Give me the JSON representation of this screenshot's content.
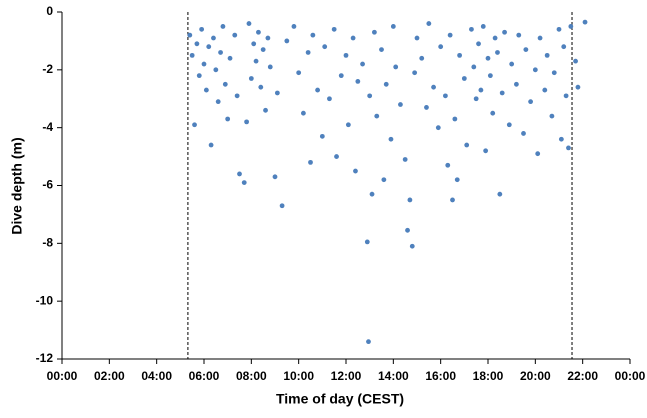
{
  "chart_data": {
    "type": "scatter",
    "xlabel": "Time of day (CEST)",
    "ylabel": "Dive depth (m)",
    "color": "#4f81bd",
    "xlim": [
      0,
      24
    ],
    "xticks": [
      {
        "value": 0,
        "label": "00:00"
      },
      {
        "value": 2,
        "label": "02:00"
      },
      {
        "value": 4,
        "label": "04:00"
      },
      {
        "value": 6,
        "label": "06:00"
      },
      {
        "value": 8,
        "label": "08:00"
      },
      {
        "value": 10,
        "label": "10:00"
      },
      {
        "value": 12,
        "label": "12:00"
      },
      {
        "value": 14,
        "label": "14:00"
      },
      {
        "value": 16,
        "label": "16:00"
      },
      {
        "value": 18,
        "label": "18:00"
      },
      {
        "value": 20,
        "label": "20:00"
      },
      {
        "value": 22,
        "label": "22:00"
      },
      {
        "value": 24,
        "label": "00:00"
      }
    ],
    "ylim": [
      -12,
      0
    ],
    "yticks": [
      0,
      -2,
      -4,
      -6,
      -8,
      -10,
      -12
    ],
    "vlines": [
      5.32,
      21.55
    ],
    "x": [
      5.4,
      5.5,
      5.6,
      5.7,
      5.8,
      5.9,
      6.0,
      6.1,
      6.2,
      6.3,
      6.4,
      6.5,
      6.6,
      6.7,
      6.8,
      6.9,
      7.0,
      7.1,
      7.3,
      7.4,
      7.5,
      7.7,
      7.8,
      7.9,
      8.0,
      8.1,
      8.2,
      8.3,
      8.4,
      8.5,
      8.6,
      8.7,
      8.8,
      9.0,
      9.1,
      9.3,
      9.5,
      9.8,
      10.0,
      10.2,
      10.4,
      10.5,
      10.6,
      10.8,
      11.0,
      11.1,
      11.3,
      11.5,
      11.6,
      11.8,
      12.0,
      12.1,
      12.3,
      12.4,
      12.5,
      12.7,
      12.9,
      12.95,
      13.0,
      13.1,
      13.2,
      13.3,
      13.5,
      13.6,
      13.7,
      13.9,
      14.0,
      14.1,
      14.3,
      14.5,
      14.6,
      14.7,
      14.8,
      14.9,
      15.0,
      15.2,
      15.4,
      15.5,
      15.7,
      15.9,
      16.0,
      16.2,
      16.3,
      16.4,
      16.5,
      16.6,
      16.7,
      16.8,
      17.0,
      17.1,
      17.3,
      17.4,
      17.5,
      17.6,
      17.7,
      17.8,
      17.9,
      18.0,
      18.1,
      18.2,
      18.3,
      18.4,
      18.5,
      18.6,
      18.7,
      18.9,
      19.0,
      19.2,
      19.3,
      19.5,
      19.6,
      19.8,
      20.0,
      20.1,
      20.2,
      20.4,
      20.5,
      20.7,
      20.8,
      21.0,
      21.1,
      21.2,
      21.3,
      21.4,
      21.5,
      21.7,
      21.8,
      22.1
    ],
    "values": [
      -0.8,
      -1.5,
      -3.9,
      -1.1,
      -2.2,
      -0.6,
      -1.8,
      -2.7,
      -1.2,
      -4.6,
      -0.9,
      -2.0,
      -3.1,
      -1.4,
      -0.5,
      -2.5,
      -3.7,
      -1.6,
      -0.8,
      -2.9,
      -5.6,
      -5.9,
      -3.8,
      -0.4,
      -2.3,
      -1.1,
      -1.7,
      -0.7,
      -2.6,
      -1.3,
      -3.4,
      -0.9,
      -1.9,
      -5.7,
      -2.8,
      -6.7,
      -1.0,
      -0.5,
      -2.1,
      -3.5,
      -1.4,
      -5.2,
      -0.8,
      -2.7,
      -4.3,
      -1.2,
      -3.0,
      -0.6,
      -5.0,
      -2.2,
      -1.5,
      -3.9,
      -0.9,
      -5.5,
      -2.4,
      -1.8,
      -7.95,
      -11.4,
      -2.9,
      -6.3,
      -0.7,
      -3.6,
      -1.3,
      -5.8,
      -2.5,
      -4.4,
      -0.5,
      -1.9,
      -3.2,
      -5.1,
      -7.55,
      -6.5,
      -8.1,
      -2.1,
      -0.9,
      -1.6,
      -3.3,
      -0.4,
      -2.6,
      -4.0,
      -1.2,
      -2.9,
      -5.3,
      -0.8,
      -6.5,
      -3.7,
      -5.8,
      -1.5,
      -2.3,
      -4.6,
      -0.6,
      -1.9,
      -3.0,
      -1.1,
      -2.7,
      -0.5,
      -4.8,
      -1.6,
      -2.2,
      -3.5,
      -0.9,
      -1.4,
      -6.3,
      -2.8,
      -0.7,
      -3.9,
      -1.8,
      -2.5,
      -0.8,
      -4.2,
      -1.3,
      -3.1,
      -2.0,
      -4.9,
      -0.9,
      -2.7,
      -1.5,
      -3.6,
      -2.1,
      -0.6,
      -4.4,
      -1.2,
      -2.9,
      -4.7,
      -0.5,
      -1.7,
      -2.6,
      -0.35
    ]
  }
}
